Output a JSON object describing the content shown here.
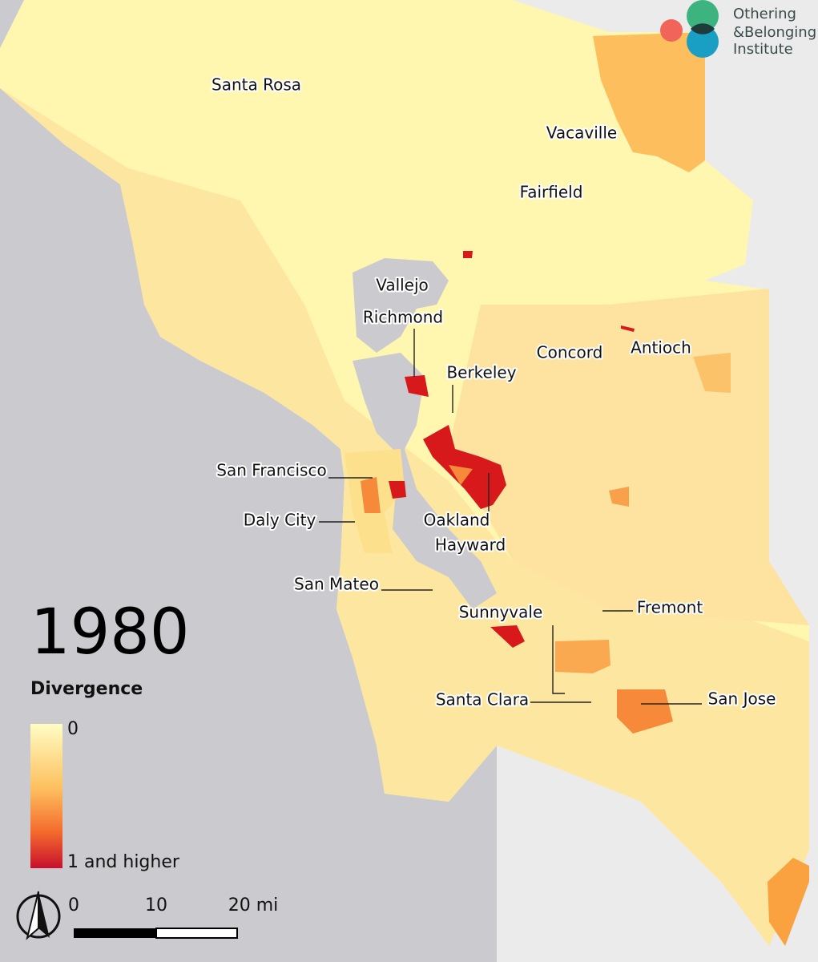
{
  "title": "1980",
  "legend": {
    "title": "Divergence",
    "min_label": "0",
    "max_label": "1 and higher"
  },
  "scale_bar": {
    "labels": [
      "0",
      "10",
      "20 mi"
    ]
  },
  "logo": {
    "lines": [
      "Othering",
      "&Belonging",
      "Institute"
    ]
  },
  "cities": [
    "Santa Rosa",
    "Vacaville",
    "Fairfield",
    "Vallejo",
    "Richmond",
    "Berkeley",
    "Concord",
    "Antioch",
    "San Francisco",
    "Daly City",
    "Oakland",
    "Hayward",
    "San Mateo",
    "Sunnyvale",
    "Fremont",
    "Santa Clara",
    "San Jose"
  ]
}
